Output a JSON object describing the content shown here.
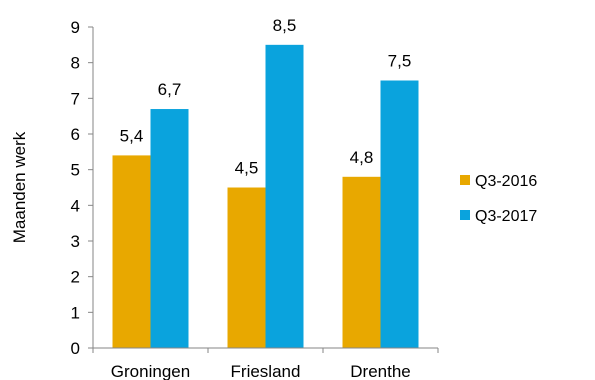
{
  "chart_data": {
    "type": "bar",
    "title": "",
    "xlabel": "",
    "ylabel": "Maanden werk",
    "categories": [
      "Groningen",
      "Friesland",
      "Drenthe"
    ],
    "series": [
      {
        "name": "Q3-2016",
        "values": [
          5.4,
          4.5,
          4.8
        ],
        "labels": [
          "5,4",
          "4,5",
          "4,8"
        ],
        "color": "#E8A800"
      },
      {
        "name": "Q3-2017",
        "values": [
          6.7,
          8.5,
          7.5
        ],
        "labels": [
          "6,7",
          "8,5",
          "7,5"
        ],
        "color": "#0AA3DD"
      }
    ],
    "ylim": [
      0,
      9
    ],
    "yticks": [
      0,
      1,
      2,
      3,
      4,
      5,
      6,
      7,
      8,
      9
    ],
    "ytick_labels": [
      "0",
      "1",
      "2",
      "3",
      "4",
      "5",
      "6",
      "7",
      "8",
      "9"
    ],
    "grid": false,
    "legend_position": "right"
  }
}
